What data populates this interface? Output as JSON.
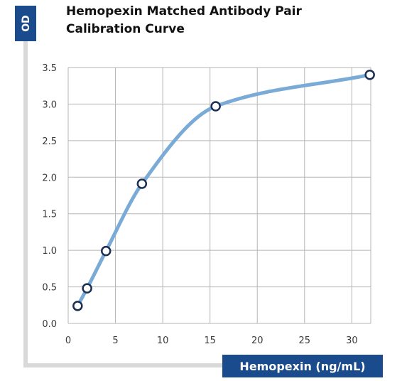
{
  "chart_data": {
    "type": "line",
    "title_lines": [
      "Hemopexin Matched Antibody Pair",
      "Calibration Curve"
    ],
    "xlabel": "Hemopexin (ng/mL)",
    "ylabel": "OD",
    "xlim": [
      0,
      32
    ],
    "ylim": [
      0,
      3.5
    ],
    "x_ticks": [
      "0",
      "5",
      "10",
      "15",
      "20",
      "25",
      "30"
    ],
    "y_ticks": [
      "0.0",
      "0.5",
      "1.0",
      "1.5",
      "2.0",
      "2.5",
      "3.0",
      "3.5"
    ],
    "grid": true,
    "series": [
      {
        "points": [
          {
            "x": 1,
            "y": 0.24
          },
          {
            "x": 2,
            "y": 0.48
          },
          {
            "x": 4,
            "y": 0.99
          },
          {
            "x": 7.8,
            "y": 1.91
          },
          {
            "x": 15.6,
            "y": 2.97
          },
          {
            "x": 31.9,
            "y": 3.4
          }
        ]
      }
    ],
    "colors": {
      "curve": "#7aabd6",
      "marker_stroke": "#1c2f52",
      "marker_fill": "#ffffff",
      "grid": "#b5b5b5",
      "label_box": "#1a4b8c",
      "frame": "#d9d9d9"
    }
  }
}
